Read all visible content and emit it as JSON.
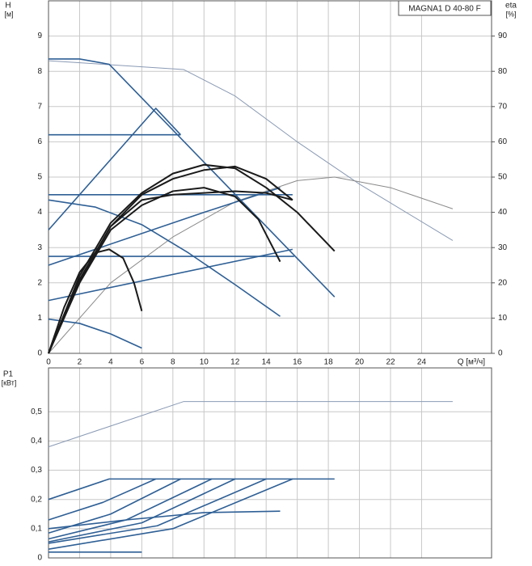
{
  "chart_data": [
    {
      "type": "line",
      "title": "MAGNA1 D 40-80 F",
      "y_label": "H",
      "y_unit": "[м]",
      "y2_label": "eta",
      "y2_unit": "[%]",
      "x_label": "Q [м³/ч]",
      "xlim": [
        0,
        28.5
      ],
      "xticks": [
        0,
        2,
        4,
        6,
        8,
        10,
        12,
        14,
        16,
        18,
        20,
        22,
        24
      ],
      "ylim": [
        0,
        10
      ],
      "yticks": [
        0,
        1,
        2,
        3,
        4,
        5,
        6,
        7,
        8,
        9
      ],
      "y2lim": [
        0,
        100
      ],
      "y2ticks": [
        0,
        10,
        20,
        30,
        40,
        50,
        60,
        70,
        80,
        90
      ],
      "grid": true,
      "series": [
        {
          "color": "#8a9ab4",
          "x": [
            0,
            8.7,
            12,
            16,
            20,
            26
          ],
          "values": [
            8.3,
            8.05,
            7.3,
            6.0,
            4.8,
            3.2
          ]
        },
        {
          "color": "#8a8a8a",
          "axis": "y2",
          "x": [
            0,
            4,
            8,
            12,
            16,
            18.4,
            22,
            26
          ],
          "values": [
            0,
            20,
            33,
            43,
            49,
            50,
            47,
            41
          ]
        },
        {
          "color": "#2e5f95",
          "x": [
            0,
            2,
            3.9,
            18.4
          ],
          "values": [
            8.35,
            8.35,
            8.2,
            1.6
          ]
        },
        {
          "color": "#2e5f95",
          "x": [
            0,
            8.5
          ],
          "values": [
            6.2,
            6.2
          ]
        },
        {
          "color": "#2e5f95",
          "x": [
            0,
            6.9,
            8.5
          ],
          "values": [
            3.5,
            6.95,
            6.2
          ]
        },
        {
          "color": "#2e5f95",
          "x": [
            0,
            15.7
          ],
          "values": [
            4.5,
            4.5
          ]
        },
        {
          "color": "#2e5f95",
          "x": [
            0,
            15.8
          ],
          "values": [
            2.75,
            2.75
          ]
        },
        {
          "color": "#2e5f95",
          "x": [
            0,
            10,
            14.9
          ],
          "values": [
            2.5,
            4.0,
            4.7
          ]
        },
        {
          "color": "#2e5f95",
          "x": [
            0,
            15.7
          ],
          "values": [
            1.5,
            2.95
          ]
        },
        {
          "color": "#2e5f95",
          "x": [
            0,
            3,
            6,
            9,
            12,
            14.9
          ],
          "values": [
            4.35,
            4.15,
            3.65,
            2.85,
            1.95,
            1.05
          ]
        },
        {
          "color": "#2e5f95",
          "x": [
            0,
            2,
            4,
            6
          ],
          "values": [
            0.97,
            0.85,
            0.55,
            0.15
          ]
        },
        {
          "color": "#1a1a1a",
          "x": [
            0,
            2,
            4,
            6,
            8,
            10,
            12,
            14,
            16,
            18.4
          ],
          "values": [
            0,
            2.2,
            3.7,
            4.55,
            5.1,
            5.35,
            5.25,
            4.7,
            4.0,
            2.9
          ]
        },
        {
          "color": "#1a1a1a",
          "x": [
            0,
            2,
            4,
            6,
            8,
            10,
            12,
            14,
            15.7
          ],
          "values": [
            0,
            2.1,
            3.6,
            4.5,
            4.95,
            5.2,
            5.3,
            4.95,
            4.35
          ]
        },
        {
          "color": "#1a1a1a",
          "x": [
            0,
            2,
            4,
            6,
            8,
            10,
            12,
            13.5,
            14.9
          ],
          "values": [
            0,
            2.0,
            3.5,
            4.2,
            4.6,
            4.7,
            4.45,
            3.8,
            2.6
          ]
        },
        {
          "color": "#1a1a1a",
          "x": [
            0,
            2,
            4,
            6,
            8,
            10,
            12,
            14,
            15.7
          ],
          "values": [
            0,
            2.05,
            3.6,
            4.35,
            4.5,
            4.55,
            4.6,
            4.55,
            4.35
          ]
        },
        {
          "color": "#1a1a1a",
          "x": [
            0,
            1,
            2,
            3,
            3.9,
            4.8,
            5.5,
            6
          ],
          "values": [
            0,
            1.3,
            2.3,
            2.85,
            2.95,
            2.7,
            2.0,
            1.2
          ]
        }
      ]
    },
    {
      "type": "line",
      "y_label": "P1",
      "y_unit": "[кВт]",
      "xlim": [
        0,
        28.5
      ],
      "xticks": [
        0,
        2,
        4,
        6,
        8,
        10,
        12,
        14,
        16,
        18,
        20,
        22,
        24
      ],
      "ylim": [
        0,
        0.65
      ],
      "yticks": [
        0,
        {
          "value": 0.1,
          "label": "0,1"
        },
        {
          "value": 0.2,
          "label": "0,2"
        },
        {
          "value": 0.3,
          "label": "0,3"
        },
        {
          "value": 0.4,
          "label": "0,4"
        },
        {
          "value": 0.5,
          "label": "0,5"
        }
      ],
      "grid": true,
      "series": [
        {
          "color": "#8a9ab4",
          "x": [
            0,
            8.7,
            26
          ],
          "values": [
            0.38,
            0.535,
            0.535
          ]
        },
        {
          "color": "#2e5f95",
          "x": [
            0,
            3.9,
            18.4
          ],
          "values": [
            0.2,
            0.27,
            0.27
          ]
        },
        {
          "color": "#2e5f95",
          "x": [
            0,
            3.5,
            6.9
          ],
          "values": [
            0.13,
            0.19,
            0.27
          ]
        },
        {
          "color": "#2e5f95",
          "x": [
            0,
            4,
            8.5
          ],
          "values": [
            0.085,
            0.15,
            0.27
          ]
        },
        {
          "color": "#2e5f95",
          "x": [
            0,
            5,
            10.5
          ],
          "values": [
            0.065,
            0.13,
            0.27
          ]
        },
        {
          "color": "#2e5f95",
          "x": [
            0,
            6,
            12
          ],
          "values": [
            0.055,
            0.12,
            0.27
          ]
        },
        {
          "color": "#2e5f95",
          "x": [
            0,
            7,
            14
          ],
          "values": [
            0.05,
            0.11,
            0.27
          ]
        },
        {
          "color": "#2e5f95",
          "x": [
            0,
            8,
            15.7
          ],
          "values": [
            0.03,
            0.1,
            0.27
          ]
        },
        {
          "color": "#2e5f95",
          "x": [
            0,
            5,
            10,
            14.9
          ],
          "values": [
            0.1,
            0.13,
            0.155,
            0.16
          ]
        },
        {
          "color": "#2e5f95",
          "x": [
            0,
            3,
            6
          ],
          "values": [
            0.02,
            0.02,
            0.02
          ]
        }
      ]
    }
  ]
}
